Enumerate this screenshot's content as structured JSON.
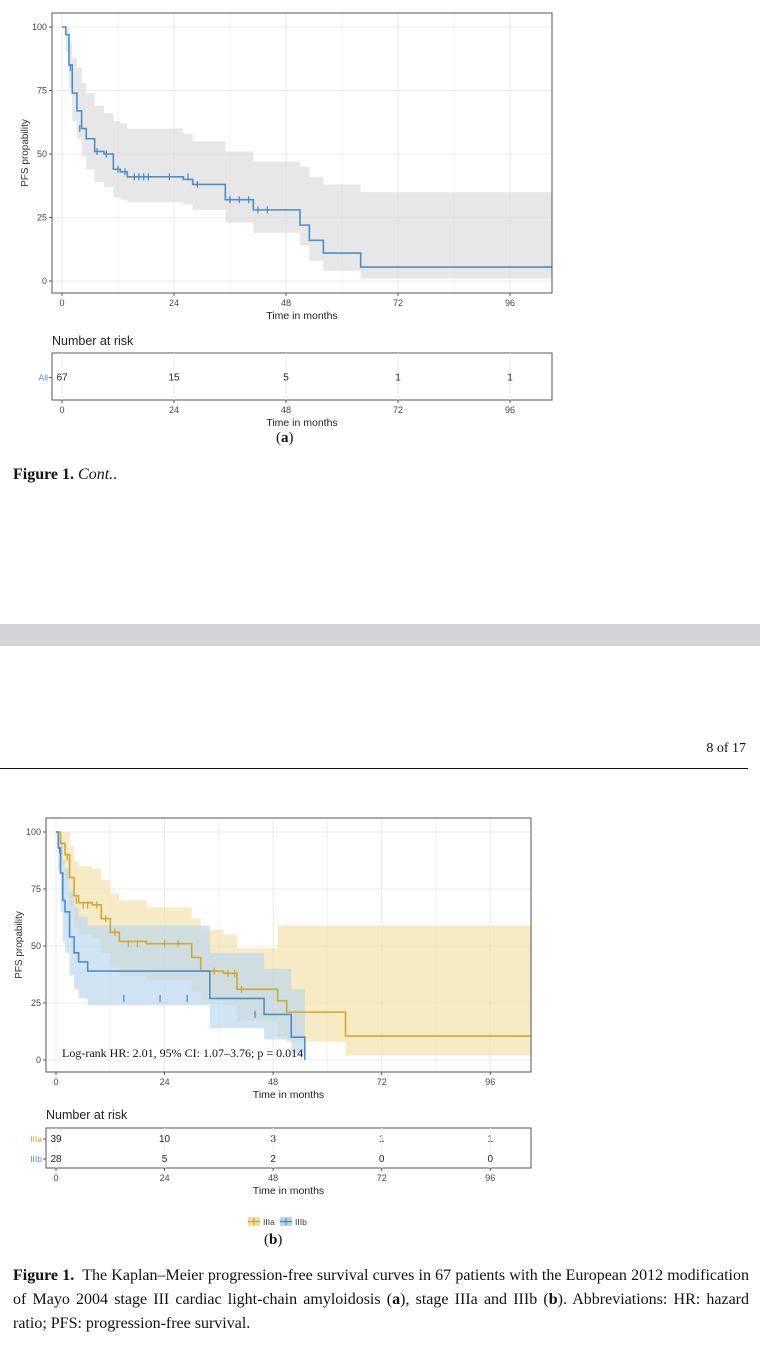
{
  "figure_a": {
    "label_prefix": "(",
    "label": "a",
    "label_suffix": ")",
    "ylabel": "PFS propability",
    "xlabel": "Time in months",
    "yticks": [
      "0",
      "25",
      "50",
      "75",
      "100"
    ],
    "xticks": [
      "0",
      "24",
      "48",
      "72",
      "96"
    ],
    "risk_title": "Number at risk",
    "risk_xlabel": "Time in months",
    "risk_rows": [
      {
        "name": "All",
        "color": "#4a90c8",
        "values": [
          "67",
          "15",
          "5",
          "1",
          "1"
        ]
      }
    ]
  },
  "figure_b": {
    "label_prefix": "(",
    "label": "b",
    "label_suffix": ")",
    "ylabel": "PFS propability",
    "xlabel": "Time in months",
    "yticks": [
      "0",
      "25",
      "50",
      "75",
      "100"
    ],
    "xticks": [
      "0",
      "24",
      "48",
      "72",
      "96"
    ],
    "annotation": "Log-rank HR: 2.01, 95% CI: 1.07–3.76; p = 0.014",
    "risk_title": "Number at risk",
    "risk_xlabel": "Time in months",
    "risk_rows": [
      {
        "name": "IIIa",
        "color": "#d4a82a",
        "values": [
          "39",
          "10",
          "3",
          "1",
          "1"
        ]
      },
      {
        "name": "IIIb",
        "color": "#4a90c8",
        "values": [
          "28",
          "5",
          "2",
          "0",
          "0"
        ]
      }
    ],
    "legend": [
      {
        "name": "IIIa",
        "color": "#d4a82a"
      },
      {
        "name": "IIIb",
        "color": "#4a90c8"
      }
    ]
  },
  "caption_top": {
    "bold": "Figure 1.",
    "italic": "Cont."
  },
  "page_number": "8 of 17",
  "caption_bottom": {
    "bold": "Figure 1.",
    "part1": "The Kaplan–Meier progression-free survival curves in 67 patients with the European 2012 modification of Mayo 2004 stage III cardiac light-chain amyloidosis (",
    "b_a": "a",
    "part2": "), stage IIIa and IIIb (",
    "b_b": "b",
    "part3": "). Abbreviations: HR: hazard ratio; PFS: progression-free survival."
  },
  "colors": {
    "blue": "#4a90c8",
    "gold": "#d4a82a",
    "ci_gray": "#e5e5e5",
    "ci_blue": "#bdd9f0",
    "ci_gold": "#f3e4ad"
  },
  "chart_data": [
    {
      "type": "line",
      "subtype": "kaplan-meier",
      "xlabel": "Time in months",
      "ylabel": "PFS propability",
      "xlim": [
        0,
        105
      ],
      "ylim": [
        0,
        100
      ],
      "series": [
        {
          "name": "All",
          "color": "#4a90c8",
          "x": [
            0,
            0.8,
            1.5,
            2.2,
            3.2,
            4.2,
            5.2,
            7,
            9,
            11,
            12.5,
            14,
            26,
            28,
            35,
            41,
            51,
            53,
            56,
            64,
            105
          ],
          "y": [
            100,
            97,
            85,
            74,
            67,
            60,
            56,
            51,
            50,
            44,
            43,
            41,
            40,
            38,
            32,
            28,
            22,
            16,
            11,
            5.5,
            5.5
          ],
          "ci_upper": [
            100,
            100,
            94,
            88,
            84,
            78,
            74,
            69,
            66,
            63,
            62,
            60,
            58,
            55,
            51,
            47,
            45,
            41,
            38,
            35,
            35
          ],
          "ci_lower": [
            100,
            90,
            76,
            63,
            56,
            49,
            44,
            39,
            37,
            33,
            32,
            31,
            30,
            28,
            23,
            19,
            14,
            8,
            4,
            1,
            1
          ],
          "censored": [
            [
              1.8,
              84
            ],
            [
              3.8,
              60
            ],
            [
              7.5,
              51
            ],
            [
              9.5,
              50
            ],
            [
              12,
              44
            ],
            [
              13.5,
              43
            ],
            [
              15.5,
              41
            ],
            [
              16.5,
              41
            ],
            [
              17.5,
              41
            ],
            [
              18.5,
              41
            ],
            [
              23,
              41
            ],
            [
              27,
              41
            ],
            [
              29,
              38
            ],
            [
              36,
              32
            ],
            [
              38,
              32
            ],
            [
              40,
              32
            ],
            [
              42,
              28
            ],
            [
              44,
              28
            ]
          ]
        }
      ]
    },
    {
      "type": "line",
      "subtype": "kaplan-meier",
      "xlabel": "Time in months",
      "ylabel": "PFS propability",
      "xlim": [
        0,
        105
      ],
      "ylim": [
        0,
        100
      ],
      "series": [
        {
          "name": "IIIa",
          "color": "#d4a82a",
          "x": [
            0,
            1,
            2,
            3,
            4,
            5,
            8,
            10,
            12,
            14,
            20,
            30,
            32,
            37,
            40,
            49,
            51,
            64,
            105
          ],
          "y": [
            100,
            95,
            90,
            80,
            72,
            69,
            68,
            62,
            56,
            52,
            51,
            45,
            39,
            38,
            31,
            26,
            21,
            10.5,
            10.5
          ],
          "ci_upper": [
            100,
            100,
            100,
            94,
            87,
            85,
            84,
            79,
            73,
            70,
            67,
            62,
            57,
            55,
            49,
            59,
            59,
            59,
            59
          ],
          "ci_lower": [
            100,
            86,
            79,
            67,
            58,
            55,
            53,
            47,
            41,
            37,
            35,
            30,
            26,
            24,
            17,
            10,
            8,
            2,
            2
          ],
          "censored": [
            [
              2.5,
              89
            ],
            [
              4.5,
              70
            ],
            [
              6,
              68
            ],
            [
              7,
              68
            ],
            [
              9,
              68
            ],
            [
              11,
              62
            ],
            [
              13,
              56
            ],
            [
              16,
              51
            ],
            [
              18,
              51
            ],
            [
              24,
              51
            ],
            [
              27,
              51
            ],
            [
              35,
              39
            ],
            [
              38,
              38
            ],
            [
              39.5,
              38
            ],
            [
              41,
              31
            ]
          ]
        },
        {
          "name": "IIIb",
          "color": "#4a90c8",
          "x": [
            0,
            0.5,
            1,
            1.5,
            2,
            3,
            4,
            5,
            7,
            34,
            46,
            52,
            55
          ],
          "y": [
            100,
            93,
            82,
            70,
            65,
            54,
            47,
            43,
            39,
            27,
            20,
            10,
            0
          ],
          "ci_upper": [
            100,
            100,
            96,
            88,
            84,
            74,
            67,
            63,
            59,
            47,
            40,
            31,
            52
          ],
          "ci_lower": [
            100,
            83,
            65,
            52,
            47,
            37,
            31,
            27,
            24,
            14,
            9,
            3,
            0
          ],
          "censored": [
            [
              0.8,
              92
            ],
            [
              15,
              27
            ],
            [
              23,
              27
            ],
            [
              29,
              27
            ],
            [
              44,
              20
            ]
          ]
        }
      ],
      "annotation": "Log-rank HR: 2.01, 95% CI: 1.07–3.76; p = 0.014"
    }
  ]
}
